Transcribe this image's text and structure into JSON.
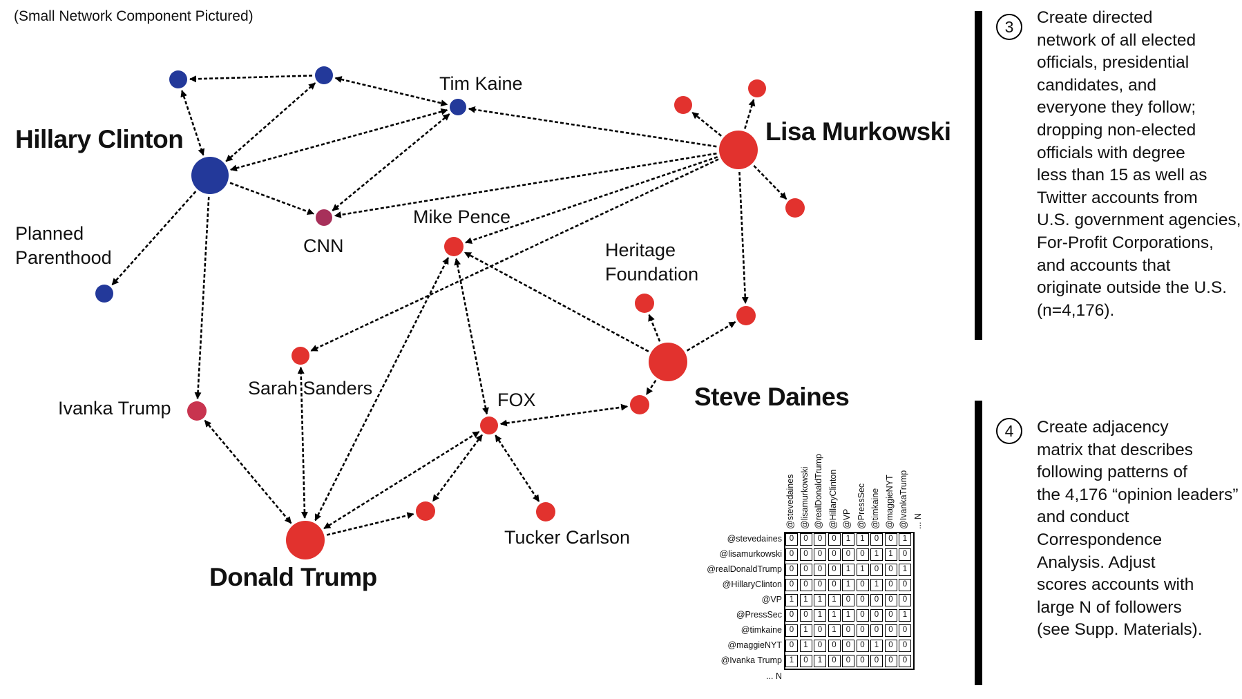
{
  "caption": "(Small Network Component Pictured)",
  "colors": {
    "democrat": "#23399a",
    "republican": "#e2322e",
    "media": "#a7305a",
    "ivanka": "#c8344f",
    "edge": "#000000"
  },
  "labels": {
    "hillary": "Hillary Clinton",
    "tim_kaine": "Tim Kaine",
    "planned_parenthood_1": "Planned",
    "planned_parenthood_2": "Parenthood",
    "cnn": "CNN",
    "mike_pence": "Mike Pence",
    "lisa": "Lisa Murkowski",
    "heritage_1": "Heritage",
    "heritage_2": "Foundation",
    "sarah": "Sarah Sanders",
    "ivanka": "Ivanka Trump",
    "fox": "FOX",
    "steve": "Steve Daines",
    "tucker": "Tucker Carlson",
    "donald": "Donald Trump"
  },
  "steps": [
    {
      "number": "3",
      "lines": [
        "Create directed",
        "network of all elected",
        "officials, presidential",
        "candidates, and",
        "everyone they follow;",
        "dropping non-elected",
        "officials with degree",
        "less than 15 as well as",
        "Twitter accounts from",
        "U.S. government agencies,",
        "For-Profit Corporations,",
        "and accounts that",
        "originate outside the U.S.",
        "(n=4,176)."
      ]
    },
    {
      "number": "4",
      "lines": [
        "Create adjacency",
        "matrix that describes",
        "following patterns of",
        "the 4,176 “opinion leaders”",
        "and conduct",
        "Correspondence",
        "Analysis. Adjust",
        "scores accounts with",
        "large N of followers",
        "(see Supp. Materials)."
      ]
    }
  ],
  "matrix": {
    "columns": [
      "@stevedaines",
      "@lisamurkowski",
      "@realDonaldTrump",
      "@HillaryClinton",
      "@VP",
      "@PressSec",
      "@timkaine",
      "@maggieNYT",
      "@IvankaTrump",
      "... N"
    ],
    "rows": [
      {
        "label": "@stevedaines",
        "values": [
          0,
          0,
          0,
          0,
          1,
          1,
          0,
          0,
          1
        ]
      },
      {
        "label": "@lisamurkowski",
        "values": [
          0,
          0,
          0,
          0,
          0,
          0,
          1,
          1,
          0
        ]
      },
      {
        "label": "@realDonaldTrump",
        "values": [
          0,
          0,
          0,
          0,
          1,
          1,
          0,
          0,
          1
        ]
      },
      {
        "label": "@HillaryClinton",
        "values": [
          0,
          0,
          0,
          0,
          1,
          0,
          1,
          0,
          0
        ]
      },
      {
        "label": "@VP",
        "values": [
          1,
          1,
          1,
          1,
          0,
          0,
          0,
          0,
          0
        ]
      },
      {
        "label": "@PressSec",
        "values": [
          0,
          0,
          1,
          1,
          1,
          0,
          0,
          0,
          1
        ]
      },
      {
        "label": "@timkaine",
        "values": [
          0,
          1,
          0,
          1,
          0,
          0,
          0,
          0,
          0
        ]
      },
      {
        "label": "@maggieNYT",
        "values": [
          0,
          1,
          0,
          0,
          0,
          0,
          1,
          0,
          0
        ]
      },
      {
        "label": "@Ivanka Trump",
        "values": [
          1,
          0,
          1,
          0,
          0,
          0,
          0,
          0,
          0
        ]
      }
    ],
    "more_rows": "... N"
  }
}
